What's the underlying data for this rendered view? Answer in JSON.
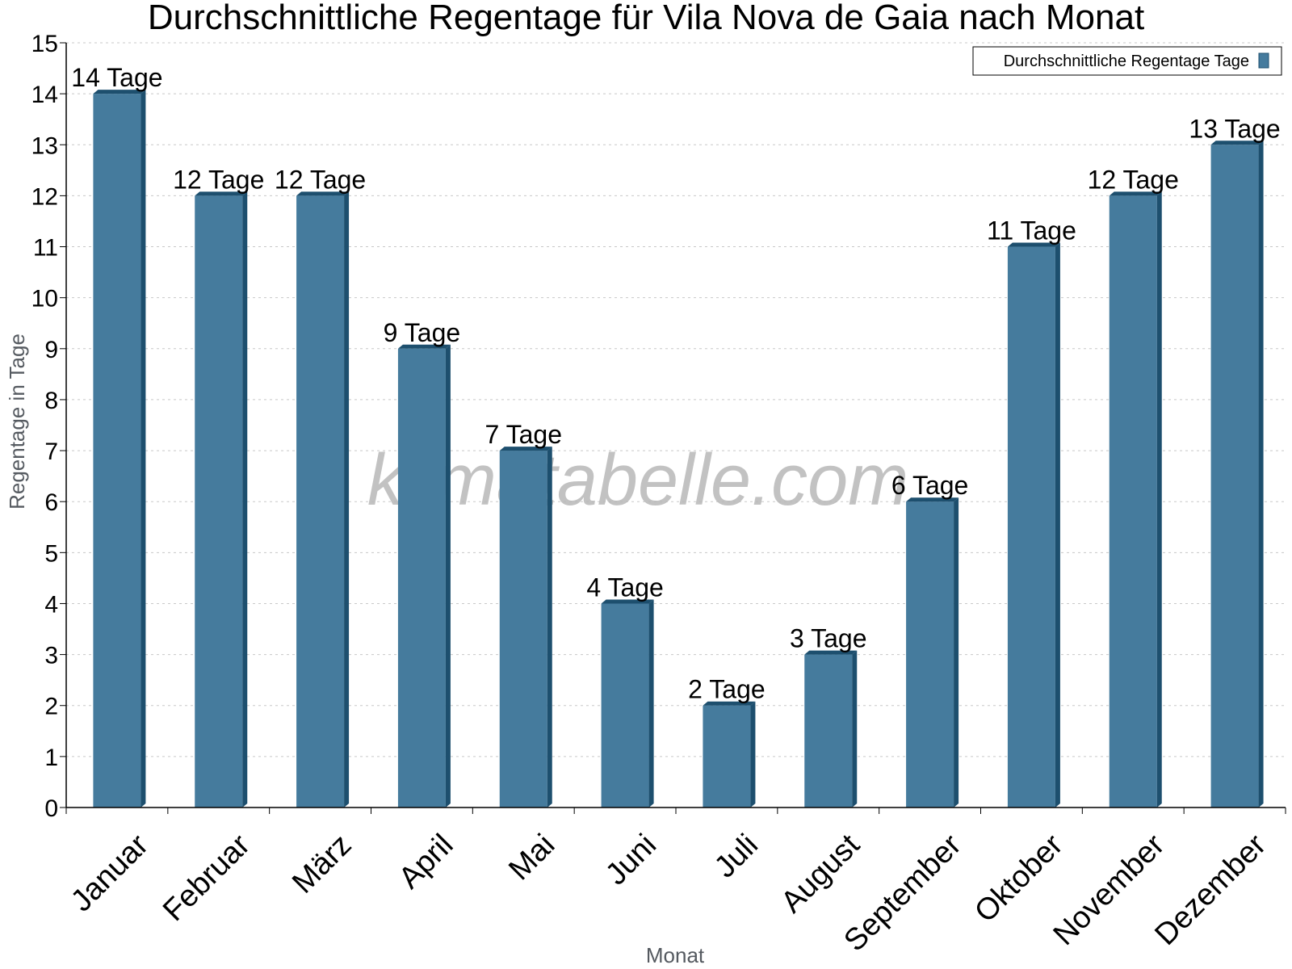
{
  "chart_data": {
    "type": "bar",
    "title": "Durchschnittliche Regentage für Vila Nova de Gaia nach Monat",
    "xlabel": "Monat",
    "ylabel": "Regentage in Tage",
    "categories": [
      "Januar",
      "Februar",
      "März",
      "April",
      "Mai",
      "Juni",
      "Juli",
      "August",
      "September",
      "Oktober",
      "November",
      "Dezember"
    ],
    "series": [
      {
        "name": "Durchschnittliche Regentage Tage",
        "values": [
          14,
          12,
          12,
          9,
          7,
          4,
          2,
          3,
          6,
          11,
          12,
          13
        ],
        "labels": [
          "14 Tage",
          "12 Tage",
          "12 Tage",
          "9 Tage",
          "7 Tage",
          "4 Tage",
          "2 Tage",
          "3 Tage",
          "6 Tage",
          "11 Tage",
          "12 Tage",
          "13 Tage"
        ]
      }
    ],
    "ylim": [
      0,
      15
    ],
    "yticks": [
      0,
      1,
      2,
      3,
      4,
      5,
      6,
      7,
      8,
      9,
      10,
      11,
      12,
      13,
      14,
      15
    ],
    "grid": true,
    "legend_position": "top-right",
    "colors": {
      "bar": "#457b9d",
      "bar_side": "#1d4f6e",
      "bar_top": "#1d4f6e",
      "grid": "#c8c8c8"
    }
  },
  "watermark": "klimatabelle.com"
}
